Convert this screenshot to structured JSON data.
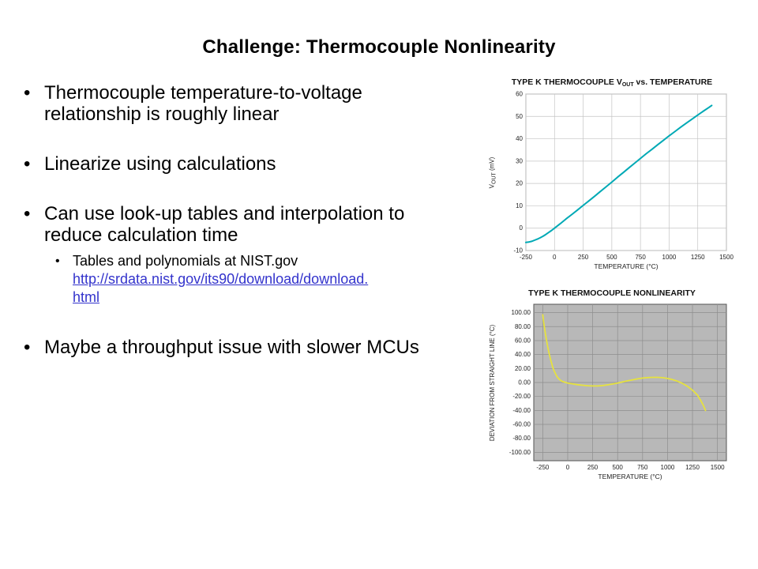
{
  "slide": {
    "title": "Challenge: Thermocouple Nonlinearity"
  },
  "colors": {
    "link": "#3333cc",
    "vout_line": "#00a9b5",
    "nonlinearity_line": "#e6e23e"
  },
  "bullets": [
    {
      "level": 1,
      "lines": [
        "Thermocouple temperature-to-voltage",
        "relationship is roughly linear"
      ]
    },
    {
      "level": 1,
      "lines": [
        "Linearize using calculations"
      ]
    },
    {
      "level": 1,
      "lines": [
        "Can use look-up tables and interpolation to",
        "reduce calculation time"
      ]
    },
    {
      "level": 2,
      "text": "Tables and polynomials at NIST.gov",
      "link_lines": [
        "http://srdata.nist.gov/its90/download/download.",
        "html"
      ],
      "link_full": "http://srdata.nist.gov/its90/download/download.html"
    },
    {
      "level": 1,
      "lines": [
        "Maybe a throughput issue with slower MCUs"
      ]
    }
  ],
  "chart_data": [
    {
      "type": "line",
      "title_parts": [
        "TYPE K THERMOCOUPLE V",
        "OUT",
        " vs. TEMPERATURE"
      ],
      "xlabel": "TEMPERATURE (°C)",
      "ylabel_parts": [
        "V",
        "OUT",
        " (mV)"
      ],
      "xlim": [
        -250,
        1500
      ],
      "ylim": [
        -10,
        60
      ],
      "xticks": [
        -250,
        0,
        250,
        500,
        750,
        1000,
        1250,
        1500
      ],
      "xtick_labels": [
        "-250",
        "0",
        "250",
        "500",
        "750",
        "1000",
        "1250",
        "1500"
      ],
      "yticks": [
        -10,
        0,
        10,
        20,
        30,
        40,
        50,
        60
      ],
      "ytick_labels": [
        "-10",
        "0",
        "10",
        "20",
        "30",
        "40",
        "50",
        "60"
      ],
      "grid": true,
      "legend": "none",
      "plot_bg": "#ffffff",
      "grid_color": "#c4c4c4",
      "border_color": "#9a9a9a",
      "text_color": "#222222",
      "line_color": "#00a9b5",
      "line_width": 2,
      "points": [
        [
          -250,
          -6.4
        ],
        [
          -225,
          -6.2
        ],
        [
          -200,
          -5.9
        ],
        [
          -175,
          -5.4
        ],
        [
          -150,
          -4.9
        ],
        [
          -125,
          -4.3
        ],
        [
          -100,
          -3.6
        ],
        [
          -75,
          -2.8
        ],
        [
          -50,
          -1.9
        ],
        [
          -25,
          -1.0
        ],
        [
          0,
          0
        ],
        [
          50,
          2.0
        ],
        [
          100,
          4.1
        ],
        [
          150,
          6.1
        ],
        [
          200,
          8.1
        ],
        [
          250,
          10.2
        ],
        [
          300,
          12.2
        ],
        [
          350,
          14.3
        ],
        [
          400,
          16.4
        ],
        [
          450,
          18.5
        ],
        [
          500,
          20.6
        ],
        [
          550,
          22.8
        ],
        [
          600,
          24.9
        ],
        [
          650,
          27.0
        ],
        [
          700,
          29.1
        ],
        [
          750,
          31.2
        ],
        [
          800,
          33.3
        ],
        [
          850,
          35.3
        ],
        [
          900,
          37.3
        ],
        [
          950,
          39.3
        ],
        [
          1000,
          41.3
        ],
        [
          1050,
          43.2
        ],
        [
          1100,
          45.1
        ],
        [
          1150,
          47.0
        ],
        [
          1200,
          48.8
        ],
        [
          1250,
          50.6
        ],
        [
          1300,
          52.4
        ],
        [
          1350,
          54.1
        ],
        [
          1372,
          54.9
        ]
      ]
    },
    {
      "type": "line",
      "title": "TYPE K THERMOCOUPLE NONLINEARITY",
      "xlabel": "TEMPERATURE (°C)",
      "ylabel": "DEVIATION FROM STRAIGHT LINE (°C)",
      "xlim": [
        -340,
        1590
      ],
      "ylim": [
        -112,
        112
      ],
      "xticks": [
        -250,
        0,
        250,
        500,
        750,
        1000,
        1250,
        1500
      ],
      "xtick_labels": [
        "-250",
        "0",
        "250",
        "500",
        "750",
        "1000",
        "1250",
        "1500"
      ],
      "yticks": [
        -100,
        -80,
        -60,
        -40,
        -20,
        0,
        20,
        40,
        60,
        80,
        100
      ],
      "ytick_labels": [
        "-100.00",
        "-80.00",
        "-60.00",
        "-40.00",
        "-20.00",
        "0.00",
        "20.00",
        "40.00",
        "60.00",
        "80.00",
        "100.00"
      ],
      "grid": true,
      "legend": "none",
      "plot_bg": "#b8b8b8",
      "grid_color": "#8e8e8e",
      "border_color": "#555555",
      "text_color": "#222222",
      "line_color": "#e6e23e",
      "line_width": 1.8,
      "points": [
        [
          -250,
          97
        ],
        [
          -240,
          86
        ],
        [
          -230,
          76
        ],
        [
          -220,
          67
        ],
        [
          -210,
          59
        ],
        [
          -200,
          51
        ],
        [
          -190,
          44
        ],
        [
          -180,
          38
        ],
        [
          -170,
          32
        ],
        [
          -160,
          27
        ],
        [
          -150,
          22
        ],
        [
          -140,
          18
        ],
        [
          -130,
          15
        ],
        [
          -120,
          12
        ],
        [
          -110,
          9
        ],
        [
          -100,
          7
        ],
        [
          -90,
          5.5
        ],
        [
          -80,
          4
        ],
        [
          -70,
          3
        ],
        [
          -60,
          2
        ],
        [
          -50,
          1.2
        ],
        [
          -25,
          0.2
        ],
        [
          0,
          -0.8
        ],
        [
          50,
          -2
        ],
        [
          100,
          -3.2
        ],
        [
          150,
          -4
        ],
        [
          200,
          -4.6
        ],
        [
          250,
          -5
        ],
        [
          300,
          -5
        ],
        [
          350,
          -4.4
        ],
        [
          400,
          -3.4
        ],
        [
          450,
          -2.2
        ],
        [
          500,
          -0.8
        ],
        [
          550,
          0.8
        ],
        [
          600,
          2.4
        ],
        [
          650,
          3.9
        ],
        [
          700,
          5.2
        ],
        [
          750,
          6.3
        ],
        [
          800,
          7
        ],
        [
          850,
          7.4
        ],
        [
          900,
          7.4
        ],
        [
          950,
          6.9
        ],
        [
          1000,
          5.8
        ],
        [
          1050,
          4.2
        ],
        [
          1100,
          1.8
        ],
        [
          1150,
          -1.4
        ],
        [
          1200,
          -5.6
        ],
        [
          1250,
          -11
        ],
        [
          1300,
          -18
        ],
        [
          1330,
          -25
        ],
        [
          1360,
          -33
        ],
        [
          1380,
          -40
        ]
      ]
    }
  ]
}
